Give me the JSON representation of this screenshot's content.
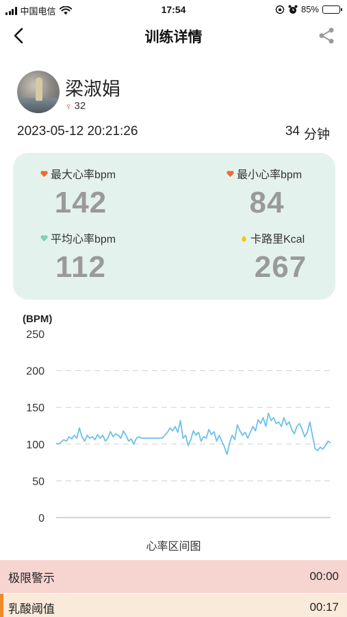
{
  "status_bar": {
    "carrier": "中国电信",
    "time": "17:54",
    "battery": "85%",
    "battery_level": 0.85
  },
  "nav": {
    "title": "训练详情",
    "back_icon": "chevron-left-icon",
    "share_icon": "share-icon"
  },
  "profile": {
    "name": "梁淑娟",
    "gender_symbol": "♀",
    "age": "32",
    "datetime": "2023-05-12 20:21:26",
    "duration_value": "34",
    "duration_unit": "分钟"
  },
  "stats": {
    "max_hr": {
      "label": "最大心率bpm",
      "value": "142",
      "icon": "heart-icon",
      "color": "#f06a2b"
    },
    "min_hr": {
      "label": "最小心率bpm",
      "value": "84",
      "icon": "heart-icon",
      "color": "#f06a2b"
    },
    "avg_hr": {
      "label": "平均心率bpm",
      "value": "112",
      "icon": "heart-icon",
      "color": "#7cd3b0"
    },
    "calories": {
      "label": "卡路里Kcal",
      "value": "267",
      "icon": "flame-icon",
      "color": "#f5c518"
    }
  },
  "chart_data": {
    "type": "line",
    "ylabel": "(BPM)",
    "xlabel": "心率区间图",
    "ylim": [
      0,
      250
    ],
    "y_ticks": [
      "0",
      "50",
      "100",
      "150",
      "200",
      "250"
    ],
    "grid": true,
    "line_color": "#6cbfec",
    "series": [
      {
        "values": [
          101,
          100,
          103,
          106,
          104,
          110,
          107,
          112,
          108,
          122,
          110,
          104,
          112,
          108,
          110,
          106,
          113,
          108,
          112,
          104,
          108,
          117,
          110,
          114,
          112,
          108,
          118,
          112,
          104,
          107,
          100,
          108,
          110,
          108,
          108,
          108,
          108,
          108,
          108,
          108,
          108,
          108,
          112,
          116,
          122,
          118,
          124,
          116,
          132,
          108,
          112,
          98,
          106,
          118,
          112,
          116,
          104,
          110,
          108,
          120,
          113,
          117,
          104,
          112,
          104,
          96,
          86,
          102,
          112,
          106,
          126,
          118,
          112,
          116,
          108,
          116,
          124,
          118,
          133,
          128,
          136,
          124,
          142,
          132,
          136,
          128,
          130,
          124,
          136,
          126,
          130,
          120,
          114,
          124,
          128,
          120,
          110,
          116,
          130,
          112,
          94,
          91,
          96,
          93,
          98,
          104,
          102
        ]
      }
    ]
  },
  "zones": [
    {
      "name": "极限警示",
      "time": "00:00",
      "color": "#f6d5d1"
    },
    {
      "name": "乳酸阈值",
      "time": "00:17",
      "color": "#faeada",
      "accent": "#f08a2a"
    }
  ]
}
